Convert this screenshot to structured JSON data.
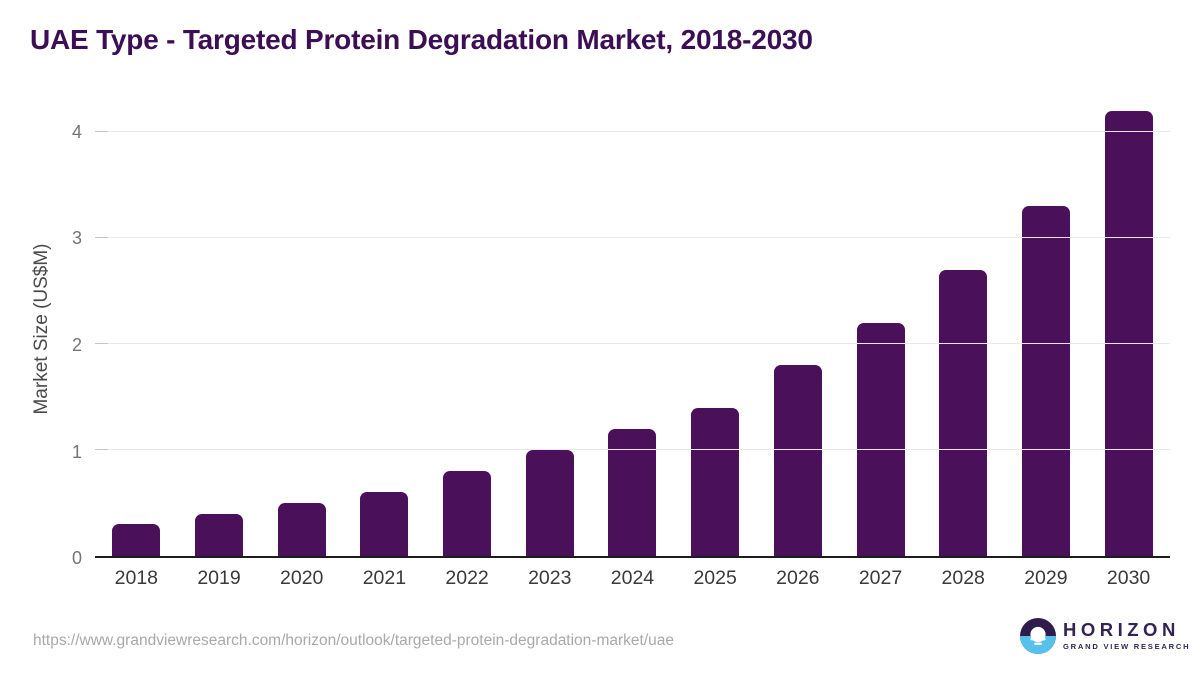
{
  "page": {
    "title": "UAE Type - Targeted Protein Degradation Market, 2018-2030"
  },
  "chart_data": {
    "type": "bar",
    "title": "UAE Type - Targeted Protein Degradation Market, 2018-2030",
    "categories": [
      "2018",
      "2019",
      "2020",
      "2021",
      "2022",
      "2023",
      "2024",
      "2025",
      "2026",
      "2027",
      "2028",
      "2029",
      "2030"
    ],
    "values": [
      0.3,
      0.4,
      0.5,
      0.6,
      0.8,
      1.0,
      1.2,
      1.4,
      1.8,
      2.2,
      2.7,
      3.3,
      4.2
    ],
    "xlabel": "",
    "ylabel": "Market Size (US$M)",
    "yticks": [
      0,
      1,
      2,
      3,
      4
    ],
    "ylim": [
      0,
      4.3
    ],
    "grid": "horizontal",
    "legend": "none",
    "bar_color": "#4a115a"
  },
  "footer": {
    "source_url": "https://www.grandviewresearch.com/horizon/outlook/targeted-protein-degradation-market/uae",
    "logo": {
      "brand": "HORIZON",
      "tagline": "GRAND VIEW RESEARCH"
    }
  },
  "colors": {
    "title_text": "#3c0e54",
    "bar": "#4a115a",
    "gridline": "#e9e9e9",
    "axis_line": "#1d1d1d",
    "logo_dark": "#2f1c4d",
    "logo_blue": "#57c1ec"
  }
}
